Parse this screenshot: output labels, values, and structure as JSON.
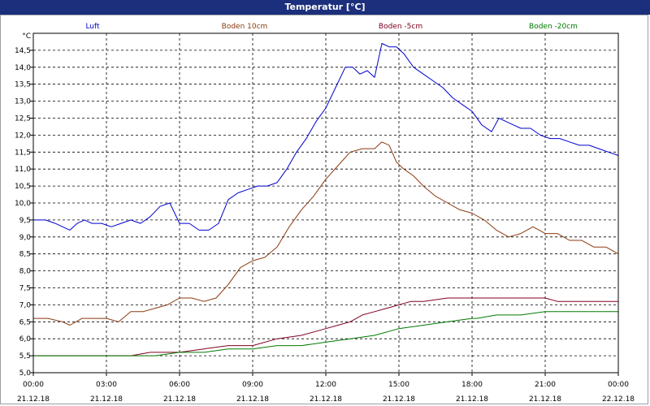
{
  "window": {
    "title": "Temperatur [°C]"
  },
  "chart_data": {
    "type": "line",
    "title": "Temperatur [°C]",
    "yunit": "°C",
    "ylim": [
      5.0,
      15.0
    ],
    "yticks": [
      "5,0",
      "5,5",
      "6,0",
      "6,5",
      "7,0",
      "7,5",
      "8,0",
      "8,5",
      "9,0",
      "9,5",
      "10,0",
      "10,5",
      "11,0",
      "11,5",
      "12,0",
      "12,5",
      "13,0",
      "13,5",
      "14,0",
      "14,5"
    ],
    "xlim": [
      0,
      24
    ],
    "xticks": [
      {
        "t": "00:00",
        "d": "21.12.18"
      },
      {
        "t": "03:00",
        "d": "21.12.18"
      },
      {
        "t": "06:00",
        "d": "21.12.18"
      },
      {
        "t": "09:00",
        "d": "21.12.18"
      },
      {
        "t": "12:00",
        "d": "21.12.18"
      },
      {
        "t": "15:00",
        "d": "21.12.18"
      },
      {
        "t": "18:00",
        "d": "21.12.18"
      },
      {
        "t": "21:00",
        "d": "21.12.18"
      },
      {
        "t": "00:00",
        "d": "22.12.18"
      }
    ],
    "grid": true,
    "legend": "top",
    "series": [
      {
        "name": "Luft",
        "color": "#0000cc",
        "x": [
          0,
          0.5,
          0.9,
          1.2,
          1.5,
          1.8,
          2.1,
          2.4,
          2.8,
          3.2,
          3.6,
          4.0,
          4.4,
          4.8,
          5.2,
          5.6,
          6.0,
          6.4,
          6.8,
          7.2,
          7.6,
          8.0,
          8.4,
          8.8,
          9.2,
          9.6,
          10.0,
          10.4,
          10.8,
          11.2,
          11.6,
          12.0,
          12.4,
          12.8,
          13.1,
          13.4,
          13.7,
          14.0,
          14.3,
          14.6,
          14.9,
          15.2,
          15.6,
          16.0,
          16.4,
          16.8,
          17.2,
          17.6,
          18.0,
          18.4,
          18.8,
          19.1,
          19.4,
          19.7,
          20.0,
          20.4,
          20.8,
          21.2,
          21.6,
          22.0,
          22.4,
          22.8,
          23.2,
          23.6,
          24.0
        ],
        "y": [
          9.5,
          9.5,
          9.4,
          9.3,
          9.2,
          9.4,
          9.5,
          9.4,
          9.4,
          9.3,
          9.4,
          9.5,
          9.4,
          9.6,
          9.9,
          10.0,
          9.4,
          9.4,
          9.2,
          9.2,
          9.4,
          10.1,
          10.3,
          10.4,
          10.5,
          10.5,
          10.6,
          11.0,
          11.5,
          11.9,
          12.4,
          12.8,
          13.4,
          14.0,
          14.0,
          13.8,
          13.9,
          13.7,
          14.7,
          14.6,
          14.6,
          14.4,
          14.0,
          13.8,
          13.6,
          13.4,
          13.1,
          12.9,
          12.7,
          12.3,
          12.1,
          12.5,
          12.4,
          12.3,
          12.2,
          12.2,
          12.0,
          11.9,
          11.9,
          11.8,
          11.7,
          11.7,
          11.6,
          11.5,
          11.4
        ]
      },
      {
        "name": "Boden 10cm",
        "color": "#8b3a0e",
        "x": [
          0,
          0.6,
          1.2,
          1.5,
          2.0,
          2.5,
          3.0,
          3.5,
          4.0,
          4.5,
          5.0,
          5.5,
          6.0,
          6.5,
          7.0,
          7.5,
          8.0,
          8.5,
          9.0,
          9.5,
          10.0,
          10.5,
          11.0,
          11.5,
          12.0,
          12.5,
          13.0,
          13.5,
          14.0,
          14.3,
          14.6,
          14.9,
          15.2,
          15.6,
          16.0,
          16.5,
          17.0,
          17.5,
          18.0,
          18.5,
          19.0,
          19.5,
          20.0,
          20.5,
          21.0,
          21.5,
          22.0,
          22.5,
          23.0,
          23.5,
          24.0
        ],
        "y": [
          6.6,
          6.6,
          6.5,
          6.4,
          6.6,
          6.6,
          6.6,
          6.5,
          6.8,
          6.8,
          6.9,
          7.0,
          7.2,
          7.2,
          7.1,
          7.2,
          7.6,
          8.1,
          8.3,
          8.4,
          8.7,
          9.3,
          9.8,
          10.2,
          10.7,
          11.1,
          11.5,
          11.6,
          11.6,
          11.8,
          11.7,
          11.2,
          11.0,
          10.8,
          10.5,
          10.2,
          10.0,
          9.8,
          9.7,
          9.5,
          9.2,
          9.0,
          9.1,
          9.3,
          9.1,
          9.1,
          8.9,
          8.9,
          8.7,
          8.7,
          8.5
        ]
      },
      {
        "name": "Boden -5cm",
        "color": "#800020",
        "x": [
          0,
          2,
          4,
          4.8,
          6,
          7,
          8,
          9,
          10,
          11,
          12,
          12.5,
          13,
          13.5,
          14,
          14.5,
          15,
          15.5,
          16,
          17,
          18,
          19,
          20,
          21,
          21.5,
          22,
          23,
          24
        ],
        "y": [
          5.5,
          5.5,
          5.5,
          5.6,
          5.6,
          5.7,
          5.8,
          5.8,
          6.0,
          6.1,
          6.3,
          6.4,
          6.5,
          6.7,
          6.8,
          6.9,
          7.0,
          7.1,
          7.1,
          7.2,
          7.2,
          7.2,
          7.2,
          7.2,
          7.1,
          7.1,
          7.1,
          7.1
        ]
      },
      {
        "name": "Boden -20cm",
        "color": "#007a00",
        "x": [
          0,
          2,
          4,
          5,
          6,
          7,
          8,
          9,
          10,
          11,
          12,
          13,
          14,
          15,
          16,
          17,
          18,
          18.2,
          19,
          20,
          21,
          22,
          23,
          24
        ],
        "y": [
          5.5,
          5.5,
          5.5,
          5.5,
          5.6,
          5.6,
          5.7,
          5.7,
          5.8,
          5.8,
          5.9,
          6.0,
          6.1,
          6.3,
          6.4,
          6.5,
          6.6,
          6.6,
          6.7,
          6.7,
          6.8,
          6.8,
          6.8,
          6.8
        ]
      }
    ]
  }
}
